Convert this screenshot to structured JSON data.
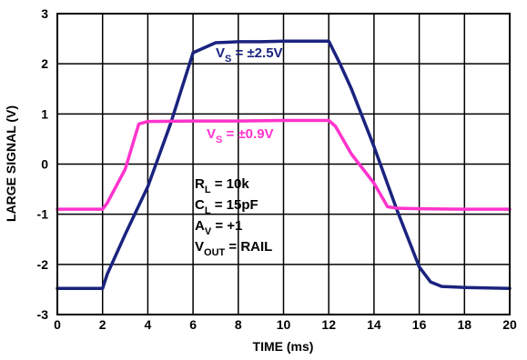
{
  "chart_data": {
    "type": "line",
    "xlabel": "TIME (ms)",
    "ylabel": "LARGE SIGNAL (V)",
    "xlim": [
      0,
      20
    ],
    "ylim": [
      -3,
      3
    ],
    "xticks": [
      "0",
      "2",
      "4",
      "6",
      "8",
      "10",
      "12",
      "14",
      "16",
      "18",
      "20"
    ],
    "yticks": [
      "3",
      "2",
      "1",
      "0",
      "-1",
      "-2",
      "-3"
    ],
    "grid": true,
    "series": [
      {
        "name": "VS = ±2.5V",
        "color": "#1a237e",
        "x": [
          0,
          2,
          2.2,
          3,
          4,
          5,
          6,
          7,
          8,
          9,
          10,
          11,
          12,
          12.5,
          13,
          14,
          15,
          16,
          16.5,
          17,
          18,
          19,
          20
        ],
        "y": [
          -2.48,
          -2.48,
          -2.2,
          -1.4,
          -0.45,
          0.8,
          2.22,
          2.42,
          2.44,
          2.44,
          2.45,
          2.45,
          2.45,
          2.0,
          1.5,
          0.35,
          -0.9,
          -2.05,
          -2.35,
          -2.44,
          -2.46,
          -2.47,
          -2.48
        ]
      },
      {
        "name": "VS = ±0.9V",
        "color": "#ff33cc",
        "x": [
          0,
          2,
          2.2,
          3,
          3.6,
          4,
          6,
          8,
          10,
          12,
          12.3,
          13,
          14,
          14.6,
          15,
          16,
          18,
          20
        ],
        "y": [
          -0.9,
          -0.9,
          -0.78,
          -0.1,
          0.8,
          0.85,
          0.86,
          0.86,
          0.87,
          0.87,
          0.75,
          0.2,
          -0.38,
          -0.85,
          -0.88,
          -0.89,
          -0.9,
          -0.9
        ]
      }
    ],
    "annotations": {
      "vs25": {
        "main": "V",
        "sub": "S",
        "rest": " = ±2.5V"
      },
      "vs09": {
        "main": "V",
        "sub": "S",
        "rest": " = ±0.9V"
      },
      "conditions": [
        {
          "main": "R",
          "sub": "L",
          "rest": " = 10k"
        },
        {
          "main": "C",
          "sub": "L",
          "rest": " = 15pF"
        },
        {
          "main": "A",
          "sub": "V",
          "rest": " = +1"
        },
        {
          "main": "V",
          "sub": "OUT",
          "rest": " = RAIL"
        }
      ]
    }
  }
}
